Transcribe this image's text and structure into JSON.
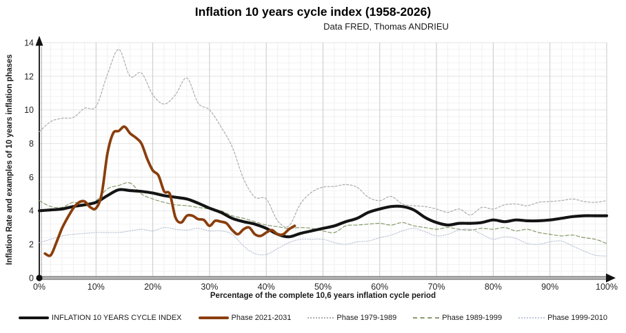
{
  "header": {
    "title": "Inflation 10 years cycle index (1958-2026)",
    "subtitle": "Data FRED, Thomas ANDRIEU"
  },
  "chart_data": {
    "type": "line",
    "title": "Inflation 10 years cycle index (1958-2026)",
    "subtitle": "Data FRED, Thomas ANDRIEU",
    "xlabel": "Percentage of the complete 10,6 years inflation cycle period",
    "ylabel": "Inflation Rate and examples of 10 years inflation phases",
    "xlim": [
      0,
      100
    ],
    "ylim": [
      0,
      14
    ],
    "grid": true,
    "legend_position": "bottom",
    "x_ticks": [
      {
        "value": 0,
        "label": "0%"
      },
      {
        "value": 10,
        "label": "10%"
      },
      {
        "value": 20,
        "label": "20%"
      },
      {
        "value": 30,
        "label": "30%"
      },
      {
        "value": 40,
        "label": "40%"
      },
      {
        "value": 50,
        "label": "50%"
      },
      {
        "value": 60,
        "label": "60%"
      },
      {
        "value": 70,
        "label": "70%"
      },
      {
        "value": 80,
        "label": "80%"
      },
      {
        "value": 90,
        "label": "90%"
      },
      {
        "value": 100,
        "label": "100%"
      }
    ],
    "y_ticks": [
      {
        "value": 0,
        "label": "0"
      },
      {
        "value": 2,
        "label": "2"
      },
      {
        "value": 4,
        "label": "4"
      },
      {
        "value": 6,
        "label": "6"
      },
      {
        "value": 8,
        "label": "8"
      },
      {
        "value": 10,
        "label": "10"
      },
      {
        "value": 12,
        "label": "12"
      },
      {
        "value": 14,
        "label": "14"
      }
    ],
    "series": [
      {
        "name": "INFLATION 10 YEARS CYCLE INDEX",
        "color": "#141414",
        "width": 4.2,
        "dash": "",
        "x0": 0,
        "dx": 2,
        "values": [
          4.0,
          4.05,
          4.1,
          4.25,
          4.35,
          4.5,
          4.9,
          5.25,
          5.2,
          5.15,
          5.05,
          4.9,
          4.8,
          4.7,
          4.45,
          4.15,
          3.9,
          3.55,
          3.35,
          3.2,
          2.95,
          2.6,
          2.45,
          2.65,
          2.8,
          2.95,
          3.1,
          3.35,
          3.55,
          3.9,
          4.1,
          4.25,
          4.25,
          4.05,
          3.6,
          3.3,
          3.15,
          3.25,
          3.25,
          3.3,
          3.45,
          3.35,
          3.45,
          3.4,
          3.4,
          3.45,
          3.55,
          3.65,
          3.7,
          3.7,
          3.7
        ]
      },
      {
        "name": "Phase 2021-2031",
        "color": "#8a3e0c",
        "width": 3.8,
        "dash": "",
        "x0": 1,
        "dx": 1,
        "values": [
          1.45,
          1.35,
          2.1,
          2.95,
          3.6,
          4.15,
          4.5,
          4.55,
          4.2,
          4.15,
          5.0,
          7.4,
          8.6,
          8.75,
          9.0,
          8.6,
          8.35,
          8.0,
          7.1,
          6.4,
          6.1,
          5.15,
          5.0,
          3.6,
          3.3,
          3.7,
          3.7,
          3.5,
          3.45,
          3.1,
          3.4,
          3.35,
          3.25,
          2.85,
          2.6,
          2.9,
          3.0,
          2.6,
          2.5,
          2.7,
          2.85,
          2.6,
          2.6,
          2.9,
          3.1
        ]
      },
      {
        "name": "Phase 1979-1989",
        "color": "#ababab",
        "width": 1.2,
        "dash": "3 2.5",
        "x0": 0,
        "dx": 2,
        "values": [
          8.7,
          9.3,
          9.5,
          9.55,
          10.1,
          10.2,
          12.1,
          13.6,
          12.0,
          12.2,
          10.9,
          10.35,
          10.9,
          11.9,
          10.4,
          10.0,
          9.0,
          7.8,
          5.9,
          4.8,
          4.7,
          3.4,
          3.1,
          4.4,
          5.1,
          5.4,
          5.45,
          5.55,
          5.4,
          4.8,
          4.6,
          4.85,
          4.4,
          4.3,
          4.25,
          4.1,
          3.9,
          4.1,
          3.75,
          4.2,
          4.1,
          4.35,
          4.4,
          4.3,
          4.5,
          4.55,
          4.6,
          4.7,
          4.55,
          4.5,
          4.6
        ]
      },
      {
        "name": "Phase 1989-1999",
        "color": "#85996b",
        "width": 1.2,
        "dash": "5 3",
        "x0": 0,
        "dx": 2,
        "values": [
          4.6,
          4.25,
          4.2,
          4.5,
          4.35,
          4.6,
          5.3,
          5.5,
          5.65,
          5.0,
          4.7,
          4.5,
          4.35,
          4.3,
          4.2,
          4.1,
          4.0,
          3.7,
          3.55,
          3.35,
          3.15,
          3.05,
          2.95,
          3.0,
          2.95,
          2.8,
          2.7,
          3.1,
          3.15,
          3.2,
          3.25,
          3.15,
          3.3,
          3.1,
          3.0,
          2.9,
          3.0,
          2.9,
          2.85,
          2.95,
          2.9,
          3.0,
          2.8,
          2.9,
          2.7,
          2.6,
          2.5,
          2.55,
          2.4,
          2.3,
          2.05
        ]
      },
      {
        "name": "Phase 1999-2010",
        "color": "#bcc5d8",
        "width": 1.2,
        "dash": "1.5 2",
        "x0": 0,
        "dx": 2,
        "values": [
          2.1,
          2.3,
          2.5,
          2.6,
          2.65,
          2.7,
          2.7,
          2.7,
          2.8,
          2.9,
          2.8,
          3.0,
          2.9,
          2.85,
          2.95,
          2.8,
          2.8,
          2.6,
          1.9,
          1.45,
          1.4,
          1.75,
          2.1,
          2.3,
          2.3,
          2.3,
          2.1,
          2.0,
          2.15,
          2.2,
          2.4,
          2.55,
          2.8,
          2.95,
          2.75,
          2.5,
          2.6,
          2.85,
          2.9,
          2.6,
          2.3,
          2.45,
          2.35,
          2.05,
          2.0,
          2.15,
          2.2,
          1.9,
          1.6,
          1.35,
          1.3
        ]
      }
    ]
  },
  "legend": {
    "items": [
      {
        "label": "INFLATION 10 YEARS CYCLE INDEX"
      },
      {
        "label": "Phase 2021-2031"
      },
      {
        "label": "Phase 1979-1989"
      },
      {
        "label": "Phase 1989-1999"
      },
      {
        "label": "Phase 1999-2010"
      }
    ]
  }
}
